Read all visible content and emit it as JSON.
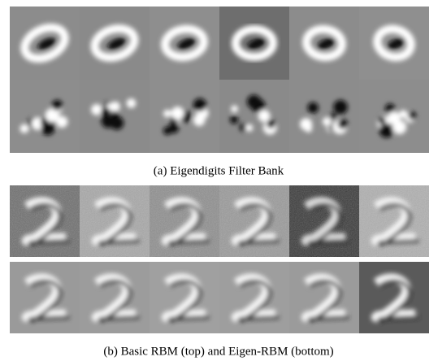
{
  "figure": {
    "panels": [
      {
        "caption": "(a) Eigendigits Filter Bank"
      },
      {
        "caption": "(b) Basic RBM (top) and Eigen-RBM (bottom)"
      }
    ]
  }
}
